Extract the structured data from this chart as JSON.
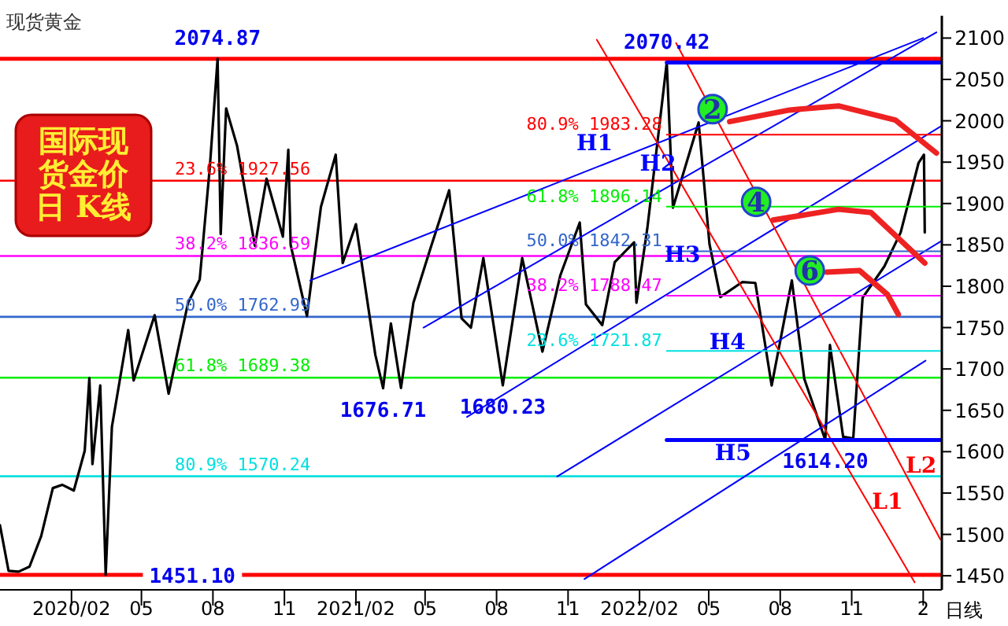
{
  "chart_data": {
    "type": "line",
    "title": "现货黄金",
    "subtitle": "国际现货金价日 K线",
    "xlim": [
      "2019-11-01",
      "2023-02-25"
    ],
    "ylim": [
      1433,
      2127
    ],
    "xticks": [
      {
        "value": "2020-02-01",
        "label": "2020/02"
      },
      {
        "value": "2020-05-01",
        "label": "05"
      },
      {
        "value": "2020-08-01",
        "label": "08"
      },
      {
        "value": "2020-11-01",
        "label": "11"
      },
      {
        "value": "2021-02-01",
        "label": "2021/02"
      },
      {
        "value": "2021-05-01",
        "label": "05"
      },
      {
        "value": "2021-08-01",
        "label": "08"
      },
      {
        "value": "2021-11-01",
        "label": "11"
      },
      {
        "value": "2022-02-01",
        "label": "2022/02"
      },
      {
        "value": "2022-05-01",
        "label": "05"
      },
      {
        "value": "2022-08-01",
        "label": "08"
      },
      {
        "value": "2022-11-01",
        "label": "11"
      },
      {
        "value": "2023-02-01",
        "label": "2"
      }
    ],
    "yticks": [
      1450,
      1500,
      1550,
      1600,
      1650,
      1700,
      1750,
      1800,
      1850,
      1900,
      1950,
      2000,
      2050,
      2100
    ],
    "grid": false,
    "ref_lines": [
      {
        "axis": "y",
        "value": 2074.87,
        "color": "#ff0000"
      },
      {
        "axis": "y",
        "value": 1451.1,
        "color": "#ff0000"
      },
      {
        "axis": "y",
        "value": 1927.56,
        "label": "23.6%  1927.56",
        "color": "#ff0000"
      },
      {
        "axis": "y",
        "value": 1836.59,
        "label": "38.2%  1836.59",
        "color": "#ff00ff"
      },
      {
        "axis": "y",
        "value": 1762.99,
        "label": "50.0%  1762.99",
        "color": "#3366cc"
      },
      {
        "axis": "y",
        "value": 1689.38,
        "label": "61.8%  1689.38",
        "color": "#00ee00"
      },
      {
        "axis": "y",
        "value": 1570.24,
        "label": "80.9%  1570.24",
        "color": "#00e0e0"
      }
    ],
    "series": [
      {
        "color": "#000000",
        "x": [
          "2019-11-01",
          "2019-11-12",
          "2019-11-25",
          "2019-12-09",
          "2019-12-24",
          "2020-01-08",
          "2020-01-20",
          "2020-02-04",
          "2020-02-18",
          "2020-02-24",
          "2020-02-28",
          "2020-03-09",
          "2020-03-16",
          "2020-03-24",
          "2020-04-14",
          "2020-04-21",
          "2020-05-18",
          "2020-06-05",
          "2020-06-30",
          "2020-07-15",
          "2020-07-28",
          "2020-08-07",
          "2020-08-11",
          "2020-08-18",
          "2020-09-01",
          "2020-09-24",
          "2020-10-09",
          "2020-10-30",
          "2020-11-06",
          "2020-11-09",
          "2020-11-30",
          "2020-12-18",
          "2021-01-06",
          "2021-01-15",
          "2021-02-01",
          "2021-02-26",
          "2021-03-08",
          "2021-03-18",
          "2021-03-31",
          "2021-04-16",
          "2021-05-07",
          "2021-06-01",
          "2021-06-17",
          "2021-06-29",
          "2021-07-15",
          "2021-08-09",
          "2021-08-31",
          "2021-09-03",
          "2021-09-29",
          "2021-10-22",
          "2021-11-16",
          "2021-11-24",
          "2021-12-15",
          "2021-12-31",
          "2022-01-25",
          "2022-01-28",
          "2022-02-11",
          "2022-02-24",
          "2022-03-08",
          "2022-03-16",
          "2022-04-18",
          "2022-05-02",
          "2022-05-16",
          "2022-06-13",
          "2022-06-30",
          "2022-07-21",
          "2022-08-16",
          "2022-09-01",
          "2022-09-28",
          "2022-10-04",
          "2022-10-21",
          "2022-11-03",
          "2022-11-15",
          "2022-12-13",
          "2023-01-03",
          "2023-01-26",
          "2023-02-02",
          "2023-02-03"
        ],
        "values": [
          1511,
          1456,
          1455,
          1461,
          1498,
          1556,
          1560,
          1553,
          1601,
          1689,
          1585,
          1680,
          1451.1,
          1630,
          1747,
          1686,
          1765,
          1670,
          1780,
          1808,
          1944,
          2074.87,
          1863,
          2015,
          1970,
          1849,
          1930,
          1860,
          1965,
          1850,
          1764,
          1896,
          1959,
          1828,
          1875,
          1717,
          1676.71,
          1755,
          1677,
          1780,
          1843,
          1916,
          1761,
          1750,
          1834,
          1680.23,
          1816,
          1834,
          1721,
          1813,
          1877,
          1778,
          1753,
          1829,
          1853,
          1780,
          1870,
          1974,
          2070.42,
          1895,
          1998,
          1851,
          1787,
          1805,
          1804,
          1680,
          1807,
          1688,
          1614.2,
          1729,
          1618,
          1616,
          1786,
          1824,
          1865,
          1949,
          1959,
          1865
        ]
      },
      {
        "name": "H1",
        "color": "#0000ff",
        "x": [
          "2020-12-04",
          "2023-02-01"
        ],
        "values": [
          1807,
          2100
        ]
      },
      {
        "name": "H2",
        "color": "#0000ff",
        "x": [
          "2021-04-29",
          "2023-02-18"
        ],
        "values": [
          1750,
          2107
        ]
      },
      {
        "name": "H3",
        "color": "#0000ff",
        "x": [
          "2021-06-24",
          "2023-02-25"
        ],
        "values": [
          1642,
          1994
        ]
      },
      {
        "name": "H4",
        "color": "#0000ff",
        "x": [
          "2021-10-18",
          "2023-02-25"
        ],
        "values": [
          1570,
          1855
        ]
      },
      {
        "name": "H5",
        "color": "#0000ff",
        "x": [
          "2021-11-22",
          "2023-02-04"
        ],
        "values": [
          1446,
          1710
        ]
      },
      {
        "name": "L1",
        "color": "#ff0000",
        "x": [
          "2021-12-08",
          "2023-01-21"
        ],
        "values": [
          2098,
          1442
        ]
      },
      {
        "name": "L2",
        "color": "#ff0000",
        "x": [
          "2022-03-20",
          "2023-02-23"
        ],
        "values": [
          2094,
          1494
        ]
      },
      {
        "color": "#0000ff",
        "x": [
          "2022-03-08",
          "2023-02-25"
        ],
        "values": [
          2070.42,
          2070.42
        ]
      },
      {
        "color": "#0000ff",
        "x": [
          "2022-03-08",
          "2023-02-25"
        ],
        "values": [
          1614.2,
          1614.2
        ]
      },
      {
        "name": "80.9%  1983.28",
        "color": "#ff0000",
        "x": [
          "2022-03-08",
          "2023-02-25"
        ],
        "values": [
          1983.28,
          1983.28
        ]
      },
      {
        "name": "61.8%  1896.14",
        "color": "#00ee00",
        "x": [
          "2022-03-08",
          "2023-02-25"
        ],
        "values": [
          1896.14,
          1896.14
        ]
      },
      {
        "name": "50.0%  1842.31",
        "color": "#3366cc",
        "x": [
          "2022-03-08",
          "2023-02-25"
        ],
        "values": [
          1842.31,
          1842.31
        ]
      },
      {
        "name": "38.2%  1788.47",
        "color": "#ff00ff",
        "x": [
          "2022-03-08",
          "2023-02-25"
        ],
        "values": [
          1788.47,
          1788.47
        ]
      },
      {
        "name": "23.6%  1721.87",
        "color": "#00e0e0",
        "x": [
          "2022-03-08",
          "2023-02-25"
        ],
        "values": [
          1721.87,
          1721.87
        ]
      },
      {
        "color": "#ee2222",
        "x": [
          "2022-05-28",
          "2022-08-13",
          "2022-10-15",
          "2022-12-27",
          "2023-02-18"
        ],
        "values": [
          1999,
          2013,
          2018,
          2001,
          1961
        ]
      },
      {
        "color": "#ee2222",
        "x": [
          "2022-07-23",
          "2022-10-15",
          "2022-11-26",
          "2023-02-03"
        ],
        "values": [
          1880,
          1893,
          1889,
          1828
        ]
      },
      {
        "color": "#ee2222",
        "x": [
          "2022-09-30",
          "2022-11-11",
          "2022-12-17",
          "2022-12-31"
        ],
        "values": [
          1817,
          1819,
          1790,
          1766
        ]
      }
    ],
    "annotations": [
      {
        "text": "2074.87",
        "x": "2020-08-07",
        "y": 2074.87
      },
      {
        "text": "2070.42",
        "x": "2022-03-08",
        "y": 2070.42
      },
      {
        "text": "1451.10",
        "x": "2020-03-16",
        "y": 1451.1
      },
      {
        "text": "1676.71",
        "x": "2021-03-08",
        "y": 1676.71
      },
      {
        "text": "1680.23",
        "x": "2021-08-09",
        "y": 1680.23
      },
      {
        "text": "1614.20",
        "x": "2022-09-28",
        "y": 1614.2
      },
      {
        "text": "2",
        "x": "2022-05-06",
        "y": 2014
      },
      {
        "text": "4",
        "x": "2022-07-01",
        "y": 1902
      },
      {
        "text": "6",
        "x": "2022-09-08",
        "y": 1819
      },
      "日线"
    ]
  }
}
